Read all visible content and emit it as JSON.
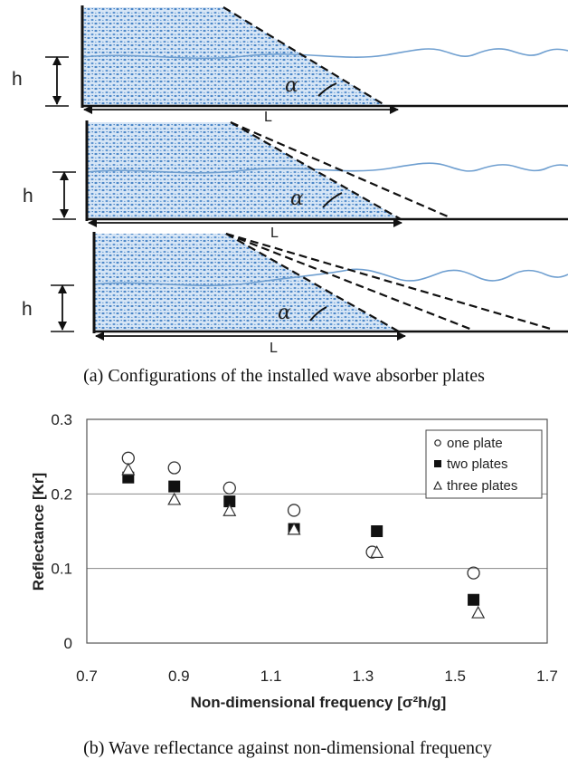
{
  "diagram": {
    "panels": [
      {
        "h_label": "h",
        "alpha_label": "α",
        "L_label": "L",
        "plates": 1
      },
      {
        "h_label": "h",
        "alpha_label": "α",
        "L_label": "L",
        "plates": 2
      },
      {
        "h_label": "h",
        "alpha_label": "α",
        "L_label": "L",
        "plates": 3
      }
    ],
    "caption": "(a) Configurations of the installed wave absorber plates",
    "colors": {
      "water_fill": "#c9def4",
      "water_dots": "#4a86c8",
      "wave_line": "#6f9fd0"
    }
  },
  "chart_data": {
    "type": "scatter",
    "xlabel": "Non-dimensional  frequency  [σ²h/g]",
    "ylabel": "Reflectance  [Kr]",
    "xlim": [
      0.7,
      1.7
    ],
    "ylim": [
      0,
      0.3
    ],
    "xticks": [
      "0.7",
      "0.9",
      "1.1",
      "1.3",
      "1.5",
      "1.7"
    ],
    "yticks": [
      "0",
      "0.1",
      "0.2",
      "0.3"
    ],
    "grid": "horizontal",
    "legend_position": "top-right",
    "series": [
      {
        "name": "one plate",
        "marker": "circle-open",
        "x": [
          0.79,
          0.89,
          1.01,
          1.15,
          1.32,
          1.54
        ],
        "y": [
          0.248,
          0.235,
          0.208,
          0.178,
          0.122,
          0.094
        ]
      },
      {
        "name": "two plates",
        "marker": "square-filled",
        "x": [
          0.79,
          0.89,
          1.01,
          1.15,
          1.33,
          1.54
        ],
        "y": [
          0.222,
          0.21,
          0.19,
          0.153,
          0.15,
          0.058
        ]
      },
      {
        "name": "three plates",
        "marker": "triangle-open",
        "x": [
          0.79,
          0.89,
          1.01,
          1.15,
          1.33,
          1.55
        ],
        "y": [
          0.232,
          0.192,
          0.177,
          0.152,
          0.121,
          0.04
        ]
      }
    ]
  },
  "caption_b": "(b) Wave reflectance against non-dimensional frequency"
}
